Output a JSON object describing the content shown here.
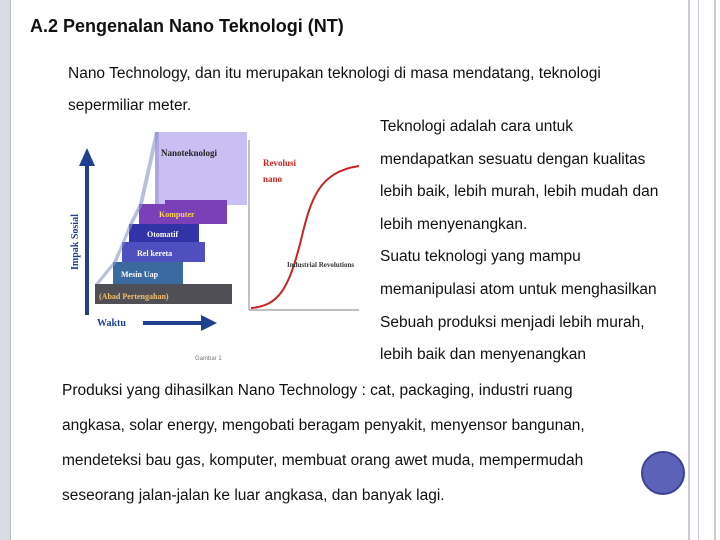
{
  "title": "A.2  Pengenalan Nano Teknologi (NT)",
  "intro": {
    "line1": "Nano Technology, dan itu merupakan teknologi di masa mendatang, teknologi",
    "line2": "sepermiliar meter."
  },
  "side_text": [
    "Teknologi adalah cara untuk",
    "mendapatkan sesuatu dengan kualitas",
    "lebih baik, lebih murah, lebih mudah dan",
    "lebih menyenangkan.",
    "Suatu teknologi yang mampu",
    "memanipulasi atom untuk menghasilkan",
    "Sebuah produksi menjadi lebih murah,",
    "lebih baik dan menyenangkan"
  ],
  "bottom_text": [
    "Produksi  yang dihasilkan Nano Technology : cat, packaging, industri ruang",
    "angkasa, solar energy, mengobati beragam penyakit, menyensor bangunan,",
    "mendeteksi bau gas, komputer, membuat orang awet muda, mempermudah",
    "seseorang jalan-jalan ke luar angkasa, dan banyak lagi."
  ],
  "figure": {
    "y_axis_label": "Impak Sosial",
    "x_axis_label": "Waktu",
    "caption": "Gambar 1",
    "layers": [
      {
        "label": "(Abad Pertengahan)",
        "color": "#4f4f55"
      },
      {
        "label": "Mesin Uap",
        "color": "#3a6aa0"
      },
      {
        "label": "Rel kereta",
        "color": "#4f4fbf"
      },
      {
        "label": "Otomatif",
        "color": "#3333a8"
      },
      {
        "label": "Komputer",
        "color": "#7a40b8"
      },
      {
        "label": "Nanoteknologi",
        "color": "#c9bff2"
      }
    ],
    "curve_label_top": "Revolusi",
    "curve_label_bottom": "nano",
    "industrial_label": "Industrial Revolutions",
    "arrow_color": "#1f3f8f",
    "curve_color": "#cc2222"
  },
  "accent_circle_color": "#5b62b8"
}
